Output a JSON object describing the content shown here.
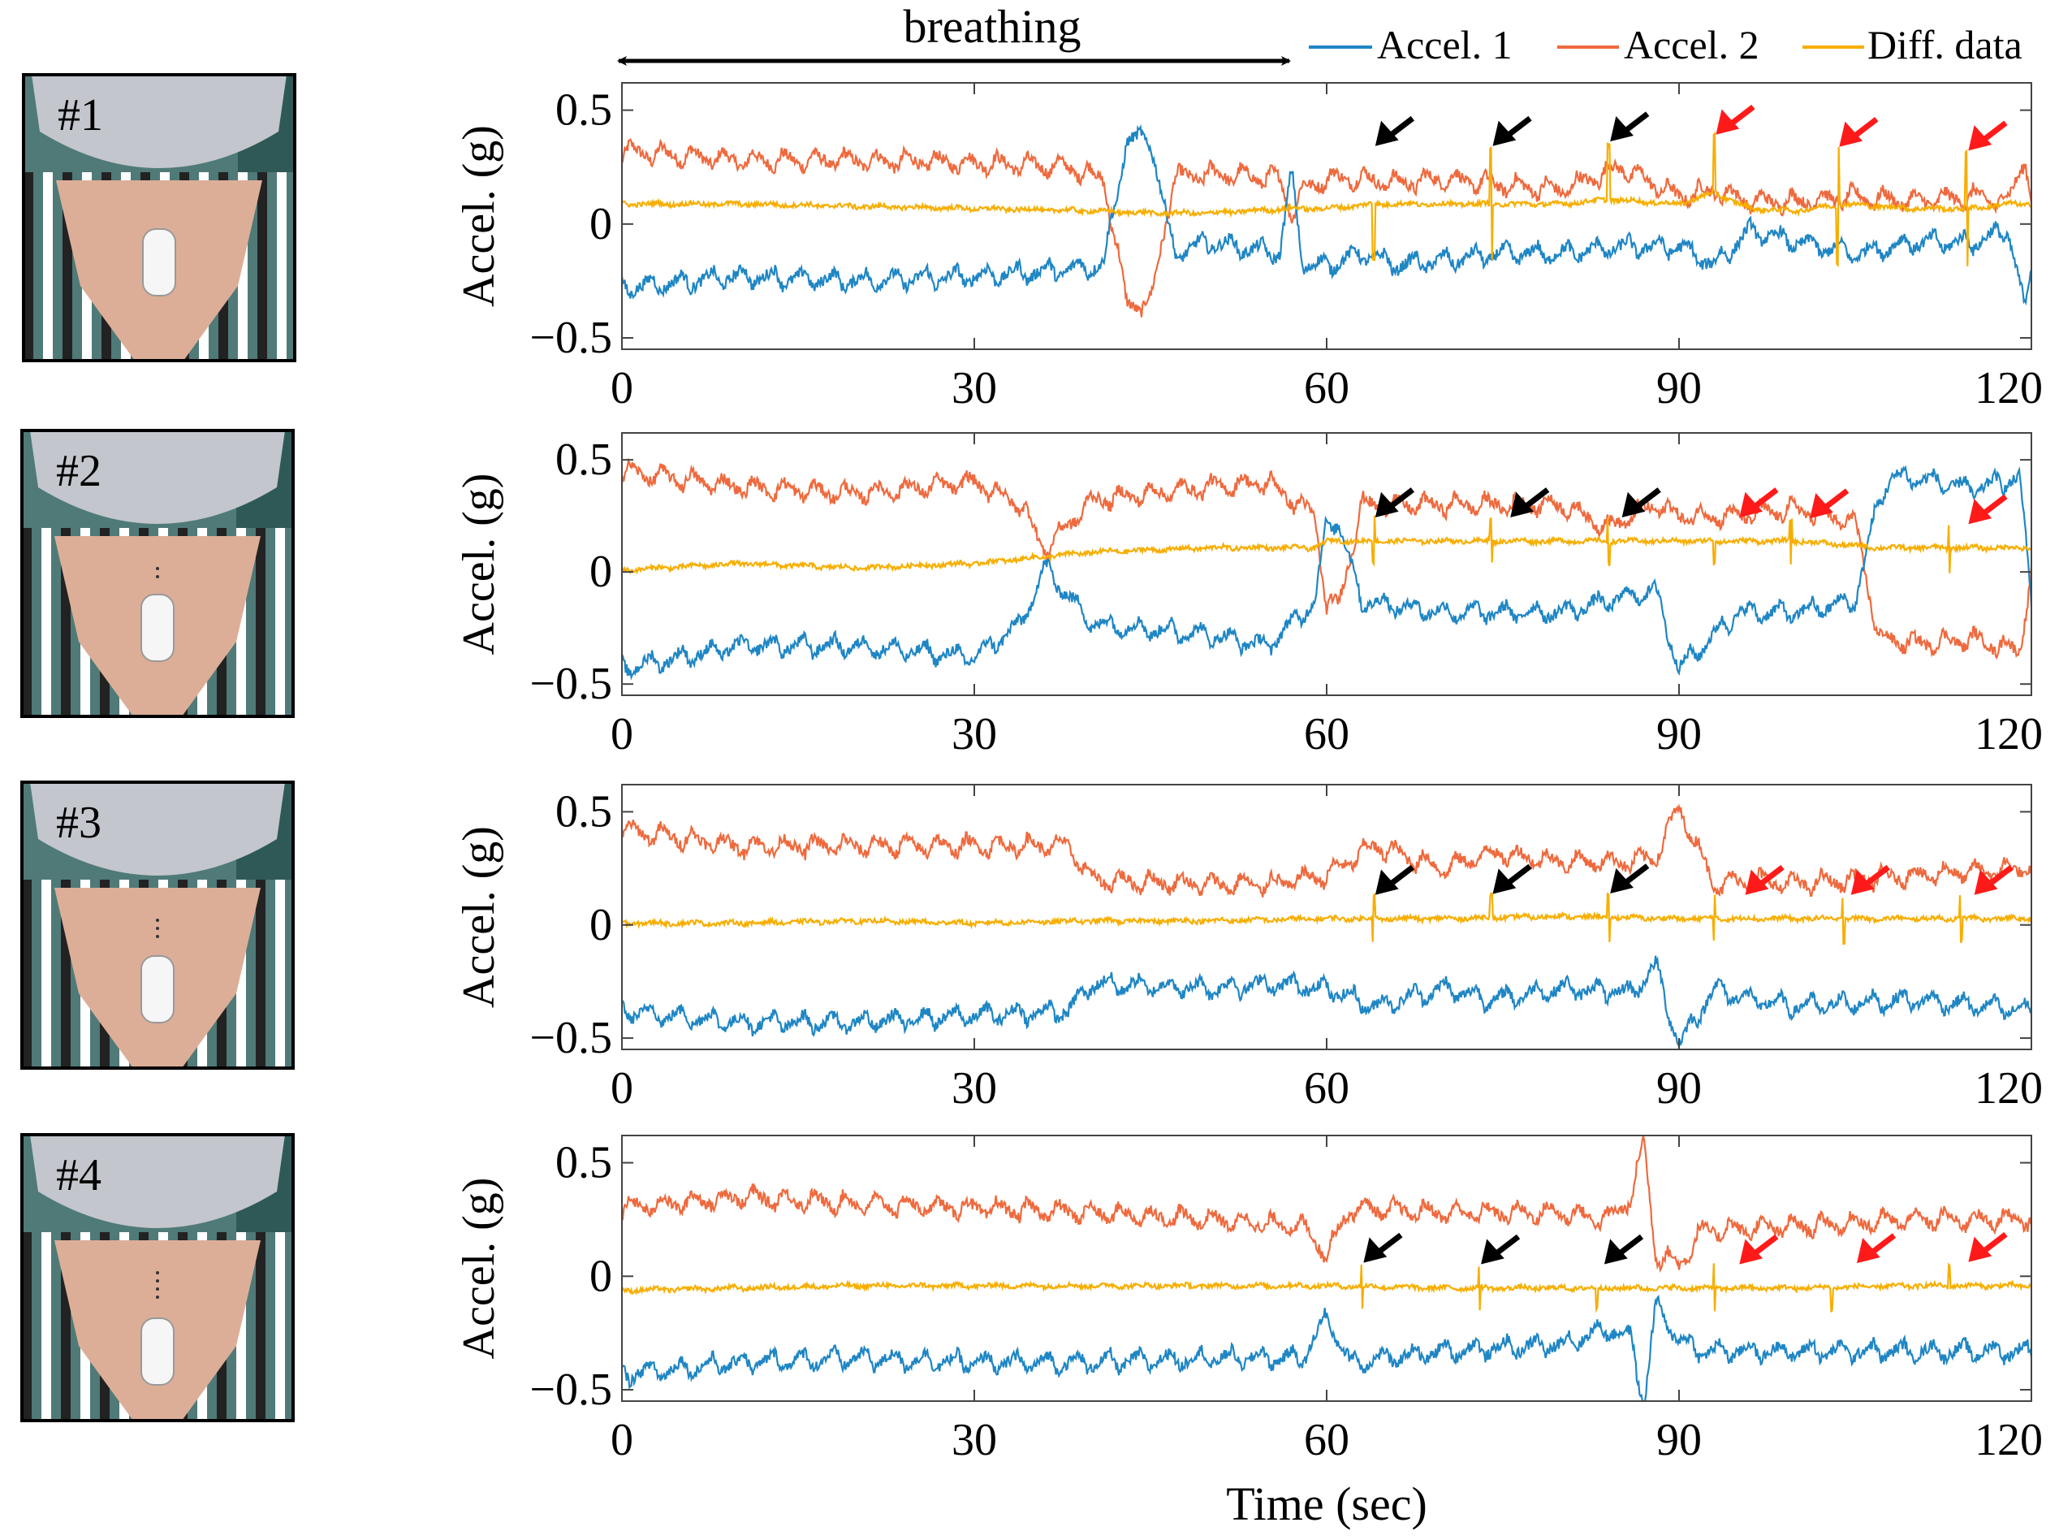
{
  "colors": {
    "accel1": "#1f86c4",
    "accel2": "#ee6a3e",
    "diff": "#f7ae00",
    "arrow_black": "#000000",
    "arrow_red": "#ff1a1a",
    "photo_mask": "#c3c6cc",
    "photo_skin": "#dcae98",
    "photo_bg": "#4f7a78",
    "device": "#f6f6f6"
  },
  "annotation": {
    "breathing_label": "breathing",
    "breathing_range_sec": [
      0,
      57
    ]
  },
  "legend": {
    "items": [
      "Accel. 1",
      "Accel. 2",
      "Diff. data"
    ],
    "placement": "top-right"
  },
  "panels": [
    {
      "photo_label": "#1",
      "sensor_icon": "neck-sensor-photo-icon"
    },
    {
      "photo_label": "#2",
      "sensor_icon": "neck-sensor-photo-icon"
    },
    {
      "photo_label": "#3",
      "sensor_icon": "neck-sensor-photo-icon"
    },
    {
      "photo_label": "#4",
      "sensor_icon": "neck-sensor-photo-icon"
    }
  ],
  "chart_data": [
    {
      "type": "line",
      "panel": "#1",
      "xlabel": "",
      "ylabel": "Accel. (g)",
      "xlim": [
        0,
        120
      ],
      "ylim": [
        -0.55,
        0.62
      ],
      "xticks": [
        "0",
        "30",
        "60",
        "90",
        "120"
      ],
      "yticks": [
        "−0.5",
        "0",
        "0.5"
      ],
      "grid": false,
      "series": [
        {
          "name": "Accel. 1",
          "x": [
            0,
            10,
            20,
            30,
            38,
            41,
            43,
            45,
            47,
            50,
            56,
            57,
            58,
            60,
            63,
            66,
            70,
            75,
            80,
            85,
            90,
            93,
            96,
            100,
            105,
            110,
            115,
            118,
            119.5,
            120
          ],
          "y": [
            -0.2,
            -0.15,
            -0.17,
            -0.15,
            -0.12,
            -0.1,
            0.45,
            0.45,
            -0.05,
            0.0,
            -0.05,
            0.3,
            -0.1,
            -0.1,
            -0.05,
            -0.1,
            -0.08,
            -0.05,
            -0.05,
            -0.02,
            -0.02,
            -0.1,
            0.05,
            0.0,
            -0.05,
            0.0,
            0.0,
            0.05,
            -0.3,
            -0.1
          ]
        },
        {
          "name": "Accel. 2",
          "x": [
            0,
            10,
            20,
            30,
            38,
            41,
            43,
            45,
            47,
            50,
            56,
            57,
            58,
            60,
            63,
            66,
            70,
            75,
            80,
            85,
            90,
            93,
            96,
            100,
            105,
            110,
            115,
            118,
            119.5,
            120
          ],
          "y": [
            0.32,
            0.28,
            0.28,
            0.27,
            0.25,
            0.2,
            -0.35,
            -0.35,
            0.2,
            0.22,
            0.2,
            0.05,
            0.15,
            0.2,
            0.2,
            0.18,
            0.2,
            0.17,
            0.15,
            0.25,
            0.12,
            0.15,
            0.1,
            0.1,
            0.12,
            0.1,
            0.12,
            0.1,
            0.3,
            0.1
          ]
        },
        {
          "name": "Diff. data",
          "x": [
            0,
            10,
            20,
            30,
            40,
            45,
            50,
            57,
            60,
            64,
            70,
            74,
            80,
            84,
            90,
            93,
            96,
            100,
            104,
            110,
            115,
            118,
            120
          ],
          "y": [
            0.1,
            0.1,
            0.09,
            0.08,
            0.07,
            0.06,
            0.06,
            0.08,
            0.08,
            0.1,
            0.1,
            0.1,
            0.1,
            0.12,
            0.1,
            0.15,
            0.08,
            0.07,
            0.1,
            0.08,
            0.08,
            0.1,
            0.1
          ]
        }
      ],
      "spikes_sec": [
        64,
        74,
        84,
        93,
        103.5,
        114.5
      ],
      "arrows": [
        {
          "x": 64,
          "color": "black"
        },
        {
          "x": 74,
          "color": "black"
        },
        {
          "x": 84,
          "color": "black"
        },
        {
          "x": 93,
          "color": "red"
        },
        {
          "x": 103.5,
          "color": "red"
        },
        {
          "x": 114.5,
          "color": "red"
        }
      ]
    },
    {
      "type": "line",
      "panel": "#2",
      "xlabel": "",
      "ylabel": "Accel. (g)",
      "xlim": [
        0,
        120
      ],
      "ylim": [
        -0.55,
        0.62
      ],
      "xticks": [
        "0",
        "30",
        "60",
        "90",
        "120"
      ],
      "yticks": [
        "−0.5",
        "0",
        "0.5"
      ],
      "grid": false,
      "series": [
        {
          "name": "Accel. 1",
          "x": [
            0,
            10,
            20,
            30,
            34,
            36,
            40,
            50,
            55,
            59,
            60,
            61,
            63,
            70,
            80,
            84,
            88,
            90,
            95,
            100,
            105,
            107,
            108,
            110,
            115,
            119,
            120
          ],
          "y": [
            -0.35,
            -0.25,
            -0.25,
            -0.3,
            -0.15,
            0.1,
            -0.15,
            -0.2,
            -0.25,
            -0.05,
            0.3,
            0.3,
            -0.05,
            -0.1,
            -0.1,
            -0.05,
            0.0,
            -0.35,
            -0.1,
            -0.1,
            -0.05,
            0.4,
            0.5,
            0.5,
            0.45,
            0.5,
            -0.05
          ]
        },
        {
          "name": "Accel. 2",
          "x": [
            0,
            10,
            20,
            30,
            34,
            36,
            40,
            50,
            55,
            59,
            60,
            61,
            63,
            70,
            80,
            84,
            88,
            90,
            95,
            100,
            105,
            107,
            108,
            110,
            115,
            119,
            120
          ],
          "y": [
            0.45,
            0.38,
            0.35,
            0.4,
            0.3,
            0.1,
            0.32,
            0.38,
            0.4,
            0.25,
            -0.15,
            -0.15,
            0.3,
            0.3,
            0.3,
            0.2,
            0.3,
            0.25,
            0.25,
            0.28,
            0.22,
            -0.3,
            -0.3,
            -0.32,
            -0.3,
            -0.35,
            0.0
          ]
        },
        {
          "name": "Diff. data",
          "x": [
            0,
            10,
            20,
            30,
            40,
            50,
            59,
            60,
            70,
            80,
            90,
            100,
            107,
            110,
            120
          ],
          "y": [
            0.02,
            0.05,
            0.03,
            0.05,
            0.1,
            0.12,
            0.12,
            0.15,
            0.15,
            0.15,
            0.15,
            0.15,
            0.12,
            0.12,
            0.12
          ]
        }
      ],
      "spikes_sec": [
        64,
        74,
        84,
        93,
        99.5,
        113
      ],
      "arrows": [
        {
          "x": 64,
          "color": "black"
        },
        {
          "x": 75.5,
          "color": "black"
        },
        {
          "x": 85,
          "color": "black"
        },
        {
          "x": 95,
          "color": "red"
        },
        {
          "x": 101,
          "color": "red"
        },
        {
          "x": 114.5,
          "color": "red"
        }
      ]
    },
    {
      "type": "line",
      "panel": "#3",
      "xlabel": "",
      "ylabel": "Accel. (g)",
      "xlim": [
        0,
        120
      ],
      "ylim": [
        -0.55,
        0.62
      ],
      "xticks": [
        "0",
        "30",
        "60",
        "90",
        "120"
      ],
      "yticks": [
        "−0.5",
        "0",
        "0.5"
      ],
      "grid": false,
      "series": [
        {
          "name": "Accel. 1",
          "x": [
            0,
            10,
            20,
            30,
            38,
            40,
            50,
            55,
            60,
            64,
            70,
            74,
            80,
            86,
            88,
            90,
            93,
            96,
            100,
            110,
            120
          ],
          "y": [
            -0.3,
            -0.35,
            -0.35,
            -0.32,
            -0.3,
            -0.18,
            -0.2,
            -0.18,
            -0.2,
            -0.28,
            -0.2,
            -0.25,
            -0.2,
            -0.22,
            -0.1,
            -0.45,
            -0.2,
            -0.25,
            -0.28,
            -0.25,
            -0.3
          ]
        },
        {
          "name": "Accel. 2",
          "x": [
            0,
            10,
            20,
            30,
            38,
            40,
            50,
            55,
            60,
            64,
            70,
            74,
            80,
            86,
            88,
            90,
            93,
            96,
            100,
            110,
            120
          ],
          "y": [
            0.42,
            0.35,
            0.35,
            0.35,
            0.35,
            0.2,
            0.18,
            0.18,
            0.22,
            0.35,
            0.25,
            0.32,
            0.28,
            0.28,
            0.3,
            0.52,
            0.18,
            0.2,
            0.18,
            0.22,
            0.25
          ]
        },
        {
          "name": "Diff. data",
          "x": [
            0,
            10,
            20,
            30,
            40,
            50,
            60,
            70,
            80,
            90,
            100,
            110,
            120
          ],
          "y": [
            0.02,
            0.02,
            0.03,
            0.02,
            0.03,
            0.03,
            0.04,
            0.04,
            0.05,
            0.04,
            0.04,
            0.04,
            0.04
          ]
        }
      ],
      "spikes_sec": [
        64,
        74,
        84,
        93,
        104,
        114
      ],
      "arrows": [
        {
          "x": 64,
          "color": "black"
        },
        {
          "x": 74,
          "color": "black"
        },
        {
          "x": 84,
          "color": "black"
        },
        {
          "x": 95.5,
          "color": "red"
        },
        {
          "x": 104.5,
          "color": "red"
        },
        {
          "x": 115,
          "color": "red"
        }
      ]
    },
    {
      "type": "line",
      "panel": "#4",
      "xlabel": "Time (sec)",
      "ylabel": "Accel. (g)",
      "xlim": [
        0,
        120
      ],
      "ylim": [
        -0.55,
        0.62
      ],
      "xticks": [
        "0",
        "30",
        "60",
        "90",
        "120"
      ],
      "yticks": [
        "−0.5",
        "0",
        "0.5"
      ],
      "grid": false,
      "series": [
        {
          "name": "Accel. 1",
          "x": [
            0,
            10,
            20,
            30,
            40,
            50,
            58,
            60,
            62,
            70,
            80,
            84,
            86,
            87,
            88,
            90,
            92,
            100,
            110,
            120
          ],
          "y": [
            -0.35,
            -0.3,
            -0.28,
            -0.3,
            -0.3,
            -0.28,
            -0.28,
            -0.1,
            -0.3,
            -0.25,
            -0.22,
            -0.15,
            -0.2,
            -0.5,
            -0.05,
            -0.2,
            -0.25,
            -0.25,
            -0.25,
            -0.25
          ]
        },
        {
          "name": "Accel. 2",
          "x": [
            0,
            10,
            20,
            30,
            40,
            50,
            58,
            60,
            62,
            70,
            80,
            84,
            86,
            87,
            88,
            90,
            92,
            100,
            110,
            120
          ],
          "y": [
            0.3,
            0.35,
            0.32,
            0.3,
            0.28,
            0.25,
            0.22,
            0.1,
            0.3,
            0.28,
            0.28,
            0.25,
            0.35,
            0.6,
            0.1,
            0.05,
            0.2,
            0.22,
            0.25,
            0.25
          ]
        },
        {
          "name": "Diff. data",
          "x": [
            0,
            10,
            20,
            30,
            40,
            50,
            60,
            70,
            80,
            90,
            100,
            110,
            120
          ],
          "y": [
            -0.05,
            -0.04,
            -0.03,
            -0.03,
            -0.03,
            -0.03,
            -0.03,
            -0.04,
            -0.04,
            -0.04,
            -0.04,
            -0.03,
            -0.03
          ]
        }
      ],
      "spikes_sec": [
        63,
        73,
        83,
        93,
        103,
        113
      ],
      "arrows": [
        {
          "x": 63,
          "color": "black"
        },
        {
          "x": 73,
          "color": "black"
        },
        {
          "x": 83.5,
          "color": "black"
        },
        {
          "x": 95,
          "color": "red"
        },
        {
          "x": 105,
          "color": "red"
        },
        {
          "x": 114.5,
          "color": "red"
        }
      ]
    }
  ]
}
